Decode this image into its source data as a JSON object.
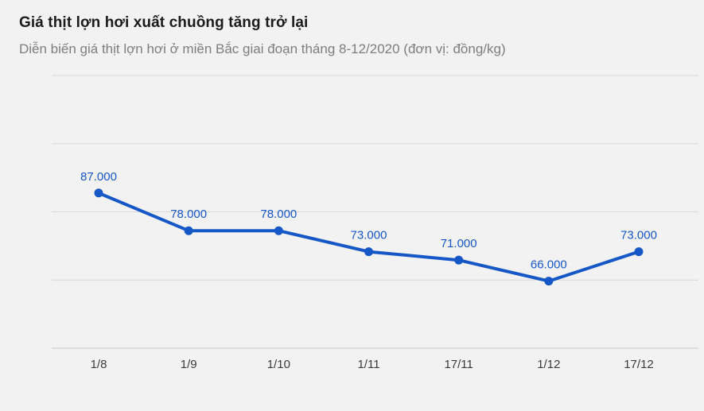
{
  "header": {
    "title": "Giá thịt lợn hơi xuất chuồng tăng trở lại",
    "subtitle": "Diễn biến giá thịt lợn hơi ở miền Bắc giai đoạn tháng 8-12/2020 (đơn vị: đồng/kg)"
  },
  "chart_data": {
    "type": "line",
    "title": "Giá thịt lợn hơi xuất chuồng tăng trở lại",
    "subtitle": "Diễn biến giá thịt lợn hơi ở miền Bắc giai đoạn tháng 8-12/2020 (đơn vị: đồng/kg)",
    "unit": "đồng/kg",
    "categories": [
      "1/8",
      "1/9",
      "1/10",
      "1/11",
      "17/11",
      "1/12",
      "17/12"
    ],
    "values": [
      87000,
      78000,
      78000,
      73000,
      71000,
      66000,
      73000
    ],
    "value_labels": [
      "87.000",
      "78.000",
      "78.000",
      "73.000",
      "71.000",
      "66.000",
      "73.000"
    ],
    "ylim": [
      50000,
      115000
    ],
    "grid": true,
    "legend": "none",
    "line_color": "#1657c7",
    "point_color": "#1657c7",
    "label_color": "#1657c7",
    "background_color": "#f2f2f2"
  }
}
